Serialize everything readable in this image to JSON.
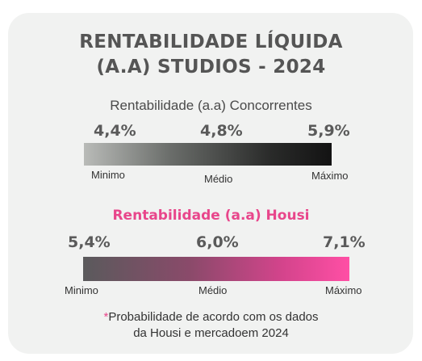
{
  "title_line1": "RENTABILIDADE LÍQUIDA",
  "title_line2": "(A.A) STUDIOS - 2024",
  "competitors": {
    "subtitle": "Rentabilidade (a.a) Concorrentes",
    "min_value": "4,4%",
    "mid_value": "4,8%",
    "max_value": "5,9%",
    "min_label": "Minimo",
    "mid_label": "Médio",
    "max_label": "Máximo"
  },
  "housi": {
    "subtitle": "Rentabilidade (a.a) Housi",
    "min_value": "5,4%",
    "mid_value": "6,0%",
    "max_value": "7,1%",
    "min_label": "Minimo",
    "mid_label": "Médio",
    "max_label": "Máximo"
  },
  "footnote": {
    "asterisk": "*",
    "line1": "Probabilidade de acordo com os dados",
    "line2": "da Housi e mercadoem 2024"
  },
  "colors": {
    "background_card": "#f1f2f1",
    "accent_pink": "#e8468b",
    "text_dark": "#555555"
  }
}
